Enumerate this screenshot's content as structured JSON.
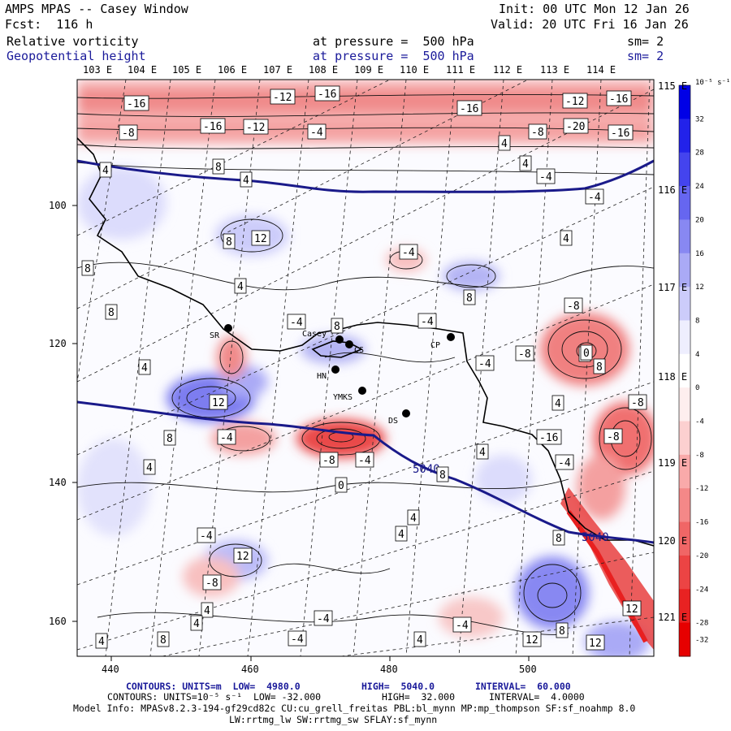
{
  "header": {
    "title": "AMPS MPAS -- Casey Window",
    "init": "Init: 00 UTC Mon 12 Jan 26",
    "fcst": "Fcst:  116 h",
    "valid": "Valid: 20 UTC Fri 16 Jan 26",
    "field1": "Relative vorticity",
    "field1_level": "at pressure =  500 hPa",
    "field1_sm": "sm= 2",
    "field2": "Geopotential height",
    "field2_level": "at pressure =  500 hPa",
    "field2_sm": "sm= 2"
  },
  "map": {
    "lon_top": [
      "103 E",
      "104 E",
      "105 E",
      "106 E",
      "107 E",
      "108 E",
      "109 E",
      "110 E",
      "111 E",
      "112 E",
      "113 E",
      "114 E"
    ],
    "lon_right": [
      "115 E",
      "116 E",
      "117 E",
      "118 E",
      "119 E",
      "120 E",
      "121 E"
    ],
    "x_ticks": [
      "440",
      "460",
      "480",
      "500"
    ],
    "y_ticks": [
      "100",
      "120",
      "140",
      "160"
    ],
    "stations": [
      "SR",
      "Casey",
      "CS",
      "HN",
      "YMKS",
      "DS",
      "CP"
    ],
    "height_labels": [
      "5040",
      "5040"
    ],
    "vort_labels": [
      "-16",
      "-12",
      "-16",
      "-16",
      "-12",
      "-16",
      "-8",
      "-16",
      "-12",
      "-4",
      "-8",
      "-20",
      "-16",
      "4",
      "8",
      "4",
      "4",
      "4",
      "-4",
      "-4",
      "12",
      "8",
      "-4",
      "4",
      "8",
      "4",
      "8",
      "8",
      "-8",
      "-4",
      "8",
      "-4",
      "-4",
      "-8",
      "0",
      "4",
      "8",
      "12",
      "-4",
      "-8",
      "4",
      "-8",
      "-16",
      "-8",
      "-4",
      "8",
      "4",
      "-4",
      "4",
      "8",
      "12",
      "-4",
      "-8",
      "4",
      "4",
      "8",
      "4",
      "4",
      "-4",
      "12",
      "8",
      "12",
      "4",
      "-4",
      "-4",
      "4",
      "8",
      "0",
      "12",
      "0"
    ]
  },
  "colorbar": {
    "units": "10⁻⁵ s⁻¹",
    "labels": [
      "32",
      "28",
      "24",
      "20",
      "16",
      "12",
      "8",
      "4",
      "0",
      "-4",
      "-8",
      "-12",
      "-16",
      "-20",
      "-24",
      "-28",
      "-32"
    ],
    "colors": [
      "#0000e6",
      "#2222ea",
      "#4444ee",
      "#6666f0",
      "#8888f2",
      "#aaaaf6",
      "#ccccfa",
      "#eeeefe",
      "#ffffff",
      "#feeeee",
      "#fcd0d0",
      "#f9aaaa",
      "#f48888",
      "#f06666",
      "#ec4444",
      "#e82222",
      "#e60000"
    ]
  },
  "footer": {
    "line1_a": "CONTOURS: UNITS=m  LOW=  4980.0",
    "line1_b": "HIGH=  5040.0",
    "line1_c": "INTERVAL=  60.000",
    "line2_a": "CONTOURS: UNITS=10⁻⁵ s⁻¹  LOW= -32.000",
    "line2_b": "HIGH=  32.000",
    "line2_c": "INTERVAL=  4.0000",
    "line3": "Model Info: MPASv8.2.3-194-gf29cd82c CU:cu_grell_freitas PBL:bl_mynn MP:mp_thompson SF:sf_noahmp 8.0",
    "line4": "LW:rrtmg_lw SW:rrtmg_sw SFLAY:sf_mynn"
  }
}
